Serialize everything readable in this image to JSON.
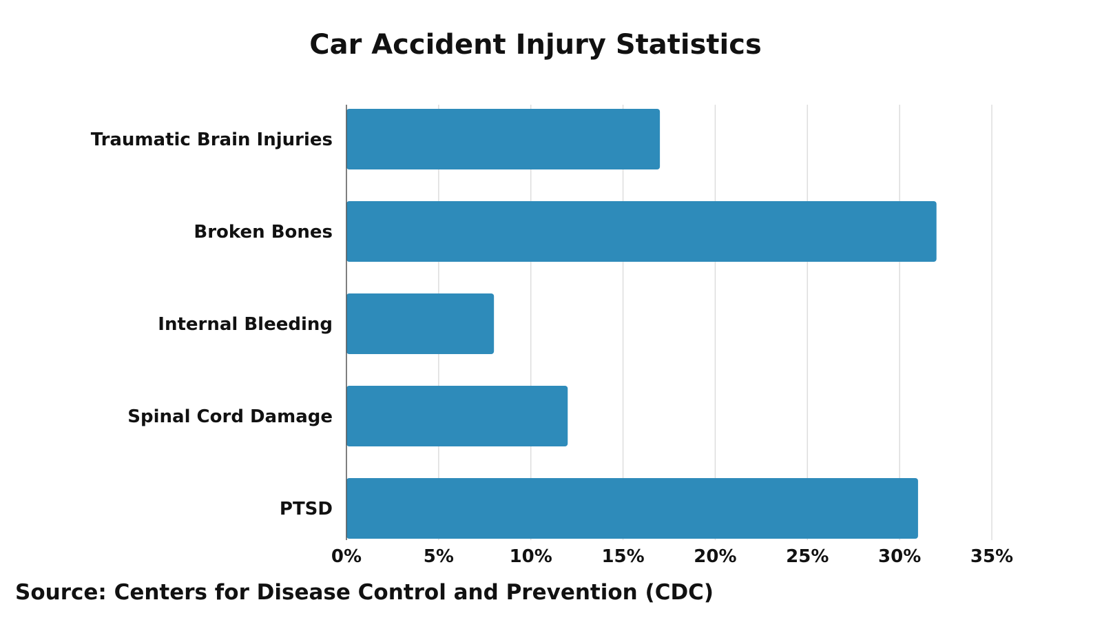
{
  "chart_data": {
    "type": "bar",
    "orientation": "horizontal",
    "title": "Car Accident Injury Statistics",
    "categories": [
      "Traumatic Brain Injuries",
      "Broken Bones",
      "Internal Bleeding",
      "Spinal Cord Damage",
      "PTSD"
    ],
    "values": [
      17,
      32,
      8,
      12,
      31
    ],
    "value_unit": "%",
    "xlim": [
      0,
      35
    ],
    "x_ticks": [
      "0%",
      "5%",
      "10%",
      "15%",
      "20%",
      "25%",
      "30%",
      "35%"
    ],
    "grid": "vertical",
    "legend": "none"
  },
  "colors": {
    "bar": "#2e8bba",
    "grid": "#dddddd",
    "axis": "#555555"
  },
  "source": "Source: Centers for Disease Control and Prevention (CDC)"
}
